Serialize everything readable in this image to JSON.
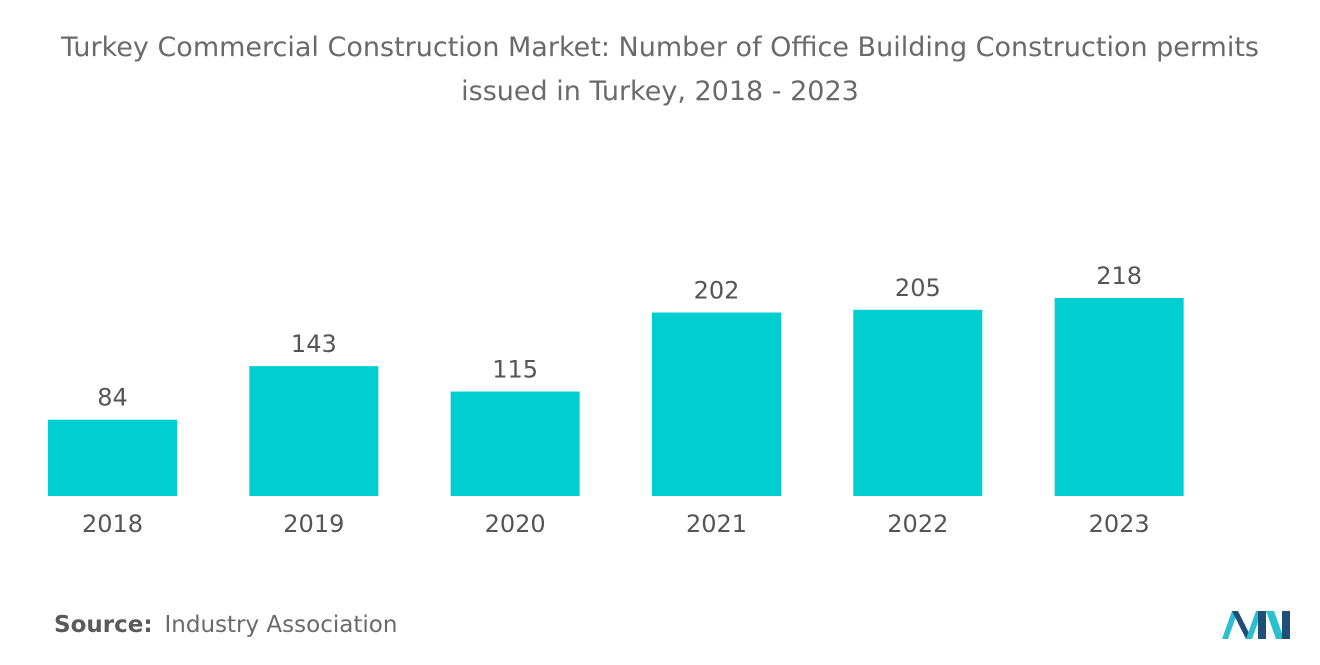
{
  "title_line1": "Turkey Commercial Construction Market: Number of Office Building Construction permits",
  "title_line2": "issued in Turkey, 2018 - 2023",
  "source_label": "Source:",
  "source_value": "Industry Association",
  "colors": {
    "bar": "#00CED1",
    "text": "#555555",
    "title": "#6a6a6a",
    "logo_dark": "#1f4e79",
    "logo_light": "#2bbfd0"
  },
  "logo_icon": "mordor-intelligence-logo-icon",
  "chart_data": {
    "type": "bar",
    "title": "Turkey Commercial Construction Market: Number of Office Building Construction permits issued in Turkey, 2018 - 2023",
    "categories": [
      "2018",
      "2019",
      "2020",
      "2021",
      "2022",
      "2023"
    ],
    "values": [
      84,
      143,
      115,
      202,
      205,
      218
    ],
    "xlabel": "",
    "ylabel": "",
    "ylim": [
      0,
      218
    ],
    "grid": false,
    "legend": "none"
  }
}
